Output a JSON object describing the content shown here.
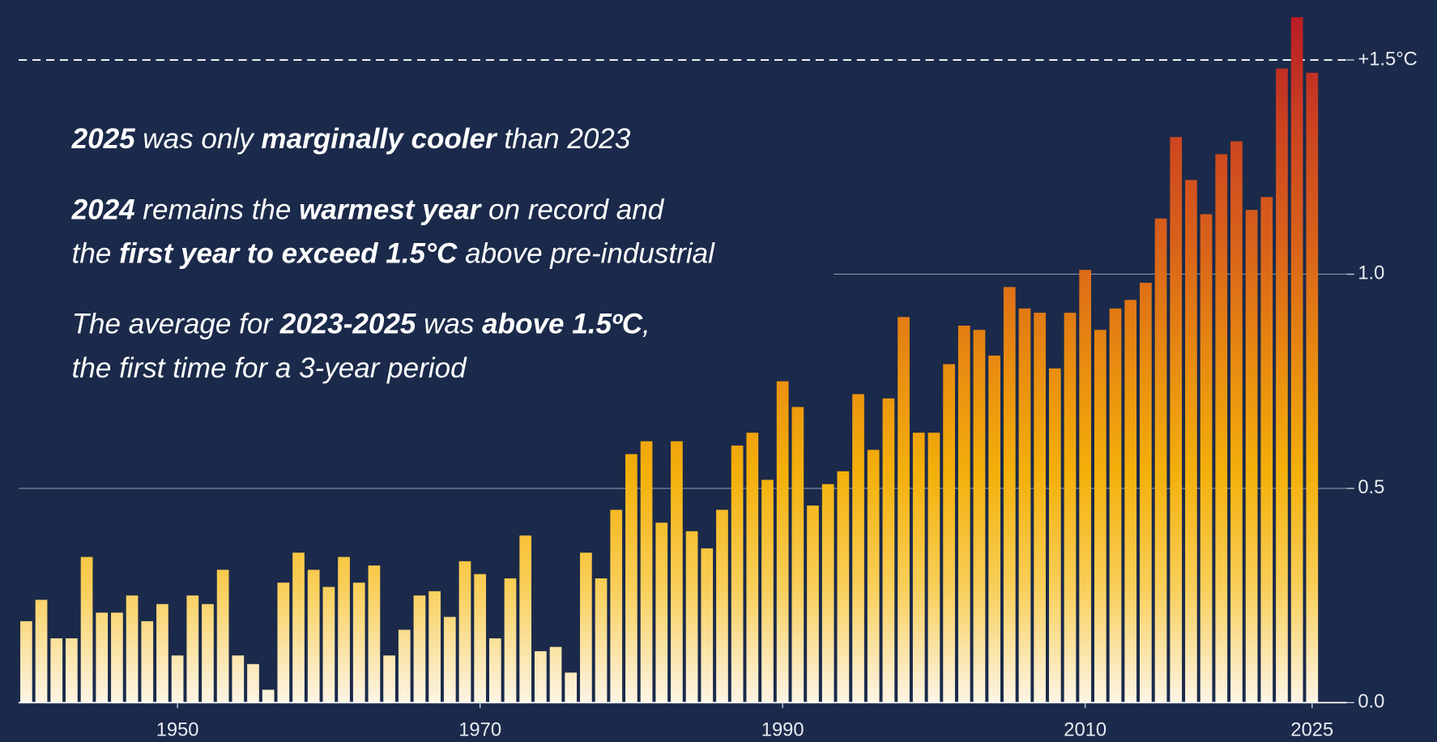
{
  "chart_data": {
    "type": "bar",
    "x": [
      1940,
      1941,
      1942,
      1943,
      1944,
      1945,
      1946,
      1947,
      1948,
      1949,
      1950,
      1951,
      1952,
      1953,
      1954,
      1955,
      1956,
      1957,
      1958,
      1959,
      1960,
      1961,
      1962,
      1963,
      1964,
      1965,
      1966,
      1967,
      1968,
      1969,
      1970,
      1971,
      1972,
      1973,
      1974,
      1975,
      1976,
      1977,
      1978,
      1979,
      1980,
      1981,
      1982,
      1983,
      1984,
      1985,
      1986,
      1987,
      1988,
      1989,
      1990,
      1991,
      1992,
      1993,
      1994,
      1995,
      1996,
      1997,
      1998,
      1999,
      2000,
      2001,
      2002,
      2003,
      2004,
      2005,
      2006,
      2007,
      2008,
      2009,
      2010,
      2011,
      2012,
      2013,
      2014,
      2015,
      2016,
      2017,
      2018,
      2019,
      2020,
      2021,
      2022,
      2023,
      2024,
      2025
    ],
    "values": [
      0.19,
      0.24,
      0.15,
      0.15,
      0.34,
      0.21,
      0.21,
      0.25,
      0.19,
      0.23,
      0.11,
      0.25,
      0.23,
      0.31,
      0.11,
      0.09,
      0.03,
      0.28,
      0.35,
      0.31,
      0.27,
      0.34,
      0.28,
      0.32,
      0.11,
      0.17,
      0.25,
      0.26,
      0.2,
      0.33,
      0.3,
      0.15,
      0.29,
      0.39,
      0.12,
      0.13,
      0.07,
      0.35,
      0.29,
      0.45,
      0.58,
      0.61,
      0.42,
      0.61,
      0.4,
      0.36,
      0.45,
      0.6,
      0.63,
      0.52,
      0.75,
      0.69,
      0.46,
      0.51,
      0.54,
      0.72,
      0.59,
      0.71,
      0.9,
      0.63,
      0.63,
      0.79,
      0.88,
      0.87,
      0.81,
      0.97,
      0.92,
      0.91,
      0.78,
      0.91,
      1.01,
      0.87,
      0.92,
      0.94,
      0.98,
      1.13,
      1.32,
      1.22,
      1.14,
      1.28,
      1.31,
      1.15,
      1.18,
      1.48,
      1.6,
      1.47
    ],
    "colors": [
      "#fdf5e6",
      "#f9cf5a",
      "#f4b00a",
      "#e88a10",
      "#d9621a",
      "#cc4420",
      "#b81c26"
    ],
    "xlim": [
      1939.5,
      2027.3
    ],
    "xticks": [
      1950,
      1970,
      1990,
      2010,
      2025
    ],
    "ylim": [
      0,
      1.64
    ],
    "yticks": [
      {
        "value": 0,
        "label": "0.0"
      },
      0.5,
      {
        "value": 1,
        "label": "1.0"
      },
      {
        "value": 1.5,
        "label": "+1.5°C",
        "style": "dashed"
      }
    ],
    "grid": true,
    "annotations": [
      [
        [
          {
            "text": "2025",
            "bold": true
          },
          {
            "text": " was only "
          },
          {
            "text": "marginally cooler",
            "bold": true
          },
          {
            "text": " than 2023"
          }
        ]
      ],
      [
        [
          {
            "text": "2024",
            "bold": true
          },
          {
            "text": " remains the "
          },
          {
            "text": "warmest year",
            "bold": true
          },
          {
            "text": " on record and"
          }
        ],
        [
          {
            "text": "the "
          },
          {
            "text": "first year to exceed 1.5°C",
            "bold": true
          },
          {
            "text": " above pre-industrial"
          }
        ]
      ],
      [
        [
          {
            "text": "The average for "
          },
          {
            "text": "2023-2025",
            "bold": true
          },
          {
            "text": " was "
          },
          {
            "text": "above 1.5ºC",
            "bold": true
          },
          {
            "text": ","
          }
        ],
        [
          {
            "text": "the first time for a 3-year period"
          }
        ]
      ]
    ]
  }
}
